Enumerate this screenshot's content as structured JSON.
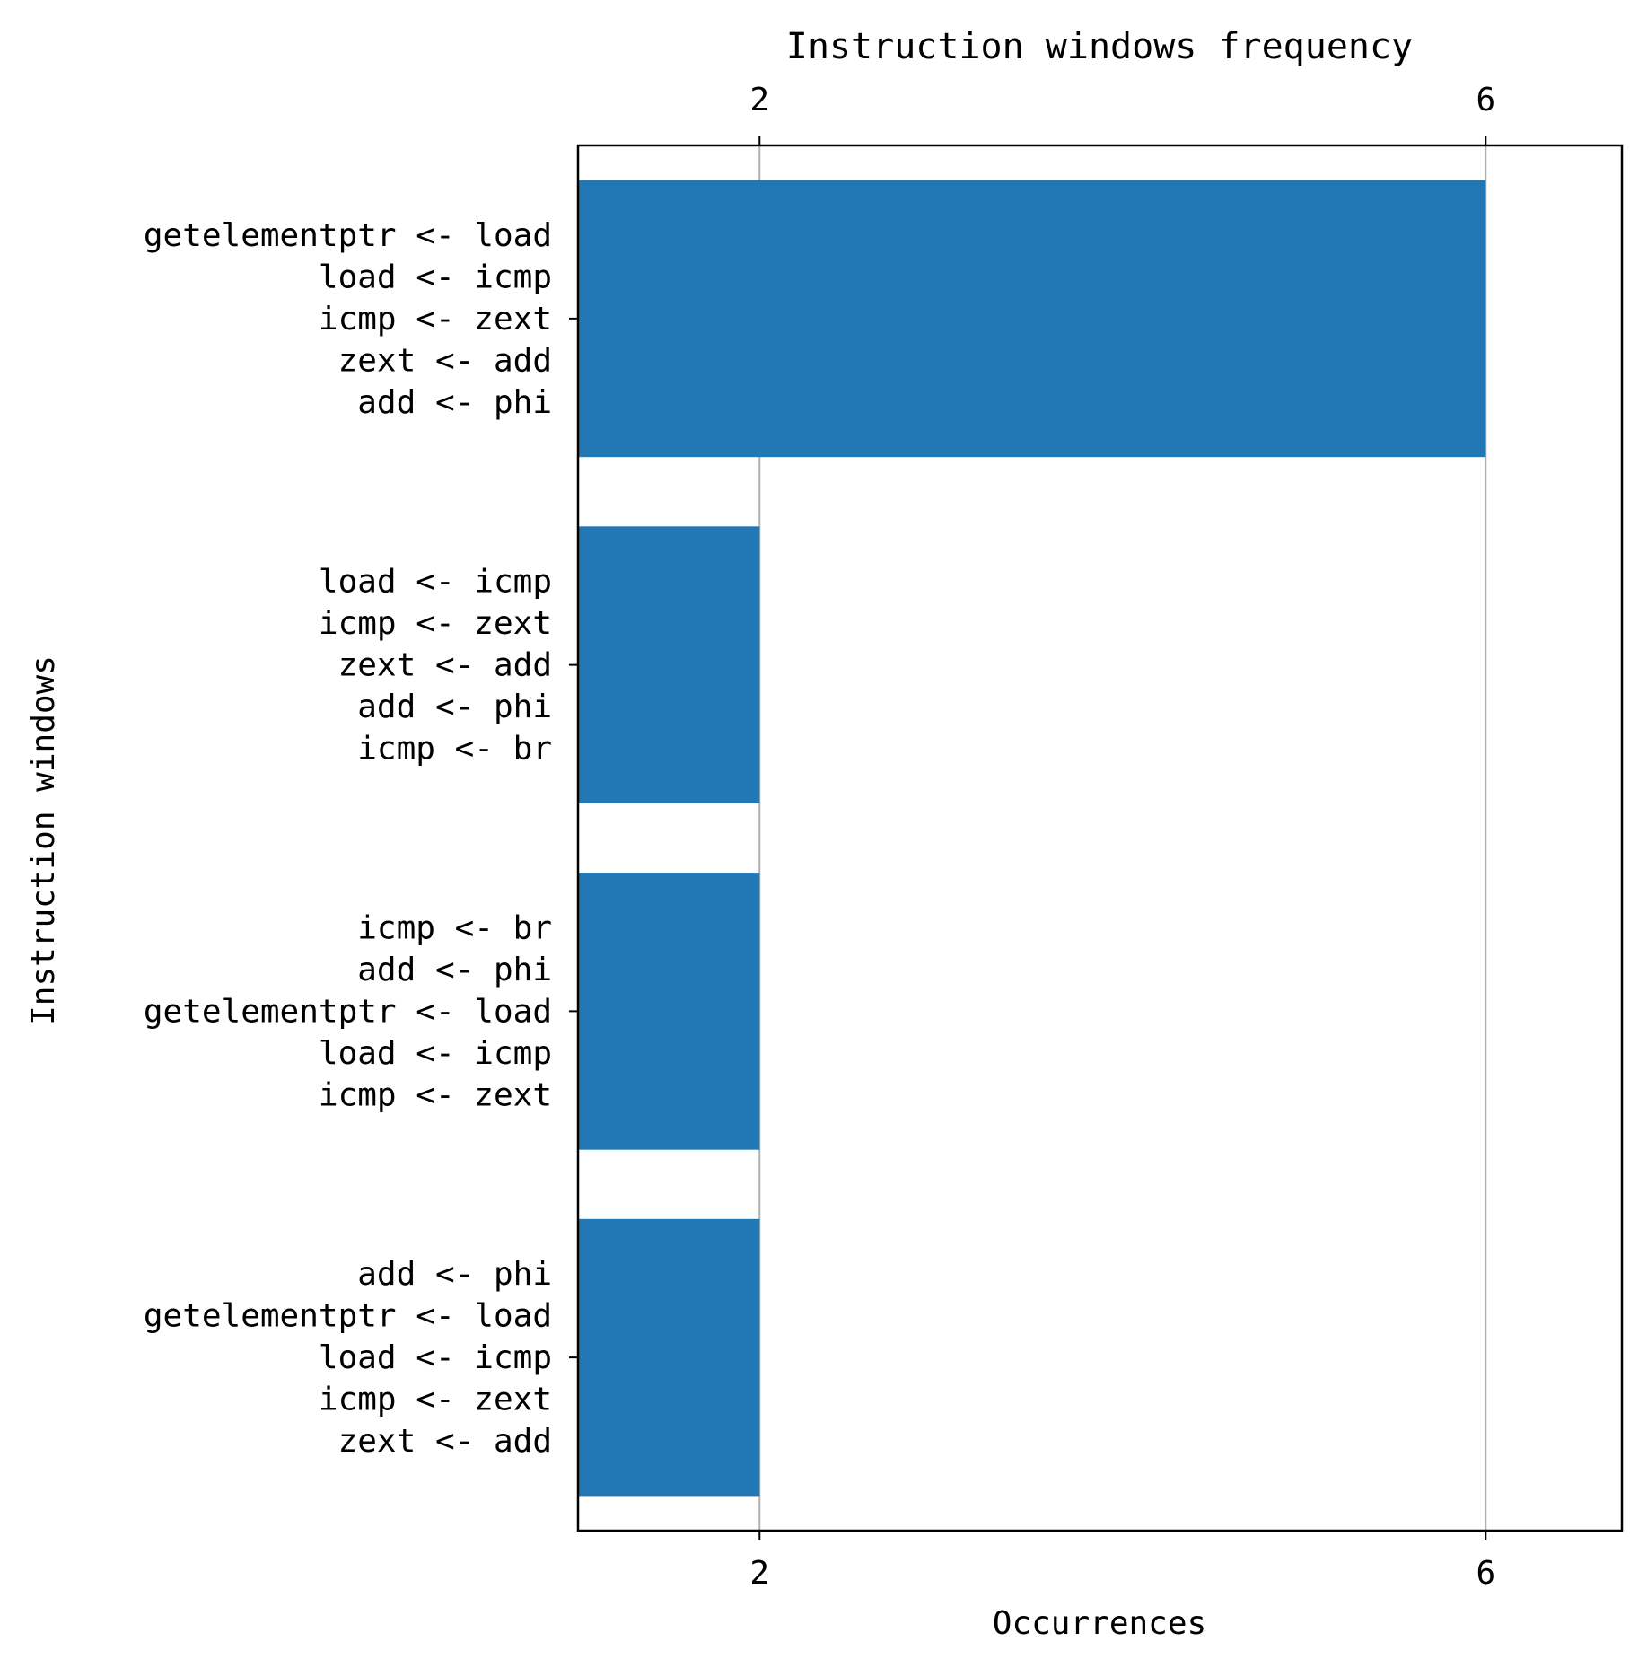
{
  "chart_data": {
    "type": "bar",
    "orientation": "horizontal",
    "title": "Instruction windows frequency",
    "xlabel": "Occurrences",
    "ylabel": "Instruction windows",
    "xlim": [
      1,
      6.75
    ],
    "xticks": [
      2,
      6
    ],
    "xtick_labels": [
      "2",
      "6"
    ],
    "xticks_on_top_and_bottom": true,
    "grid": "vertical",
    "bar_color": "#2178b4",
    "categories": [
      "getelementptr <- load\nload <- icmp\nicmp <- zext\nzext <- add\nadd <- phi",
      "load <- icmp\nicmp <- zext\nzext <- add\nadd <- phi\nicmp <- br",
      "icmp <- br\nadd <- phi\ngetelementptr <- load\nload <- icmp\nicmp <- zext",
      "add <- phi\ngetelementptr <- load\nload <- icmp\nicmp <- zext\nzext <- add"
    ],
    "values": [
      6,
      2,
      2,
      2
    ]
  }
}
